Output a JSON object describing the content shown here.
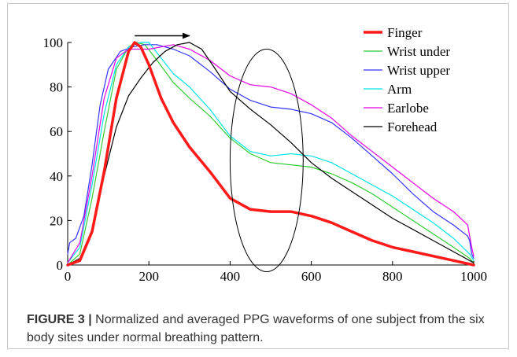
{
  "caption": {
    "label": "FIGURE 3 |",
    "text": " Normalized and averaged PPG waveforms of one subject from the six body sites under normal breathing pattern."
  },
  "chart_data": {
    "type": "line",
    "title": "",
    "xlabel": "",
    "ylabel": "",
    "xlim": [
      0,
      1000
    ],
    "ylim": [
      0,
      100
    ],
    "xticks": [
      0,
      200,
      400,
      600,
      800,
      1000
    ],
    "yticks": [
      0,
      20,
      40,
      60,
      80,
      100
    ],
    "grid": false,
    "legend_position": "top-right",
    "series": [
      {
        "name": "Finger",
        "color": "#ff1a1a",
        "width": 3.5,
        "points": [
          [
            0,
            0
          ],
          [
            30,
            2
          ],
          [
            60,
            15
          ],
          [
            90,
            42
          ],
          [
            120,
            75
          ],
          [
            150,
            96
          ],
          [
            165,
            100
          ],
          [
            180,
            98
          ],
          [
            200,
            90
          ],
          [
            230,
            75
          ],
          [
            260,
            64
          ],
          [
            300,
            53
          ],
          [
            350,
            42
          ],
          [
            400,
            30
          ],
          [
            450,
            25
          ],
          [
            500,
            24
          ],
          [
            550,
            24
          ],
          [
            600,
            22
          ],
          [
            650,
            19
          ],
          [
            700,
            15
          ],
          [
            750,
            11
          ],
          [
            800,
            8
          ],
          [
            850,
            6
          ],
          [
            900,
            4
          ],
          [
            950,
            2
          ],
          [
            1000,
            0
          ]
        ]
      },
      {
        "name": "Wrist under",
        "color": "#33cc33",
        "width": 1.2,
        "points": [
          [
            0,
            0
          ],
          [
            30,
            5
          ],
          [
            60,
            30
          ],
          [
            90,
            60
          ],
          [
            120,
            88
          ],
          [
            150,
            98
          ],
          [
            170,
            100
          ],
          [
            190,
            99
          ],
          [
            220,
            92
          ],
          [
            260,
            82
          ],
          [
            300,
            75
          ],
          [
            350,
            67
          ],
          [
            400,
            57
          ],
          [
            450,
            50
          ],
          [
            500,
            46
          ],
          [
            550,
            45
          ],
          [
            600,
            44
          ],
          [
            650,
            41
          ],
          [
            700,
            37
          ],
          [
            750,
            32
          ],
          [
            800,
            26
          ],
          [
            850,
            20
          ],
          [
            900,
            14
          ],
          [
            950,
            8
          ],
          [
            990,
            3
          ],
          [
            1000,
            1
          ]
        ]
      },
      {
        "name": "Wrist upper",
        "color": "#3333ff",
        "width": 1.2,
        "points": [
          [
            0,
            5
          ],
          [
            5,
            10
          ],
          [
            20,
            12
          ],
          [
            40,
            22
          ],
          [
            60,
            45
          ],
          [
            80,
            72
          ],
          [
            100,
            88
          ],
          [
            130,
            96
          ],
          [
            160,
            98
          ],
          [
            190,
            99
          ],
          [
            220,
            99
          ],
          [
            260,
            97
          ],
          [
            300,
            94
          ],
          [
            350,
            87
          ],
          [
            400,
            79
          ],
          [
            450,
            74
          ],
          [
            500,
            71
          ],
          [
            550,
            70
          ],
          [
            600,
            68
          ],
          [
            650,
            64
          ],
          [
            700,
            57
          ],
          [
            750,
            49
          ],
          [
            800,
            41
          ],
          [
            850,
            32
          ],
          [
            900,
            24
          ],
          [
            950,
            18
          ],
          [
            985,
            13
          ],
          [
            990,
            11
          ],
          [
            995,
            5
          ],
          [
            1000,
            3
          ]
        ]
      },
      {
        "name": "Arm",
        "color": "#00e5e5",
        "width": 1.2,
        "points": [
          [
            0,
            1
          ],
          [
            30,
            8
          ],
          [
            60,
            36
          ],
          [
            90,
            68
          ],
          [
            120,
            90
          ],
          [
            150,
            98
          ],
          [
            180,
            100
          ],
          [
            200,
            100
          ],
          [
            230,
            93
          ],
          [
            260,
            86
          ],
          [
            300,
            80
          ],
          [
            350,
            70
          ],
          [
            400,
            58
          ],
          [
            450,
            51
          ],
          [
            500,
            49
          ],
          [
            550,
            50
          ],
          [
            600,
            49
          ],
          [
            650,
            46
          ],
          [
            700,
            41
          ],
          [
            750,
            36
          ],
          [
            800,
            31
          ],
          [
            850,
            25
          ],
          [
            900,
            19
          ],
          [
            950,
            12
          ],
          [
            990,
            5
          ],
          [
            1000,
            2
          ]
        ]
      },
      {
        "name": "Earlobe",
        "color": "#e600e6",
        "width": 1.2,
        "points": [
          [
            0,
            1
          ],
          [
            30,
            10
          ],
          [
            60,
            40
          ],
          [
            90,
            75
          ],
          [
            120,
            93
          ],
          [
            150,
            97
          ],
          [
            180,
            97
          ],
          [
            200,
            97
          ],
          [
            230,
            98
          ],
          [
            260,
            99
          ],
          [
            300,
            97
          ],
          [
            350,
            92
          ],
          [
            400,
            85
          ],
          [
            450,
            81
          ],
          [
            500,
            80
          ],
          [
            550,
            77
          ],
          [
            600,
            72
          ],
          [
            650,
            66
          ],
          [
            700,
            58
          ],
          [
            750,
            51
          ],
          [
            800,
            44
          ],
          [
            850,
            37
          ],
          [
            900,
            30
          ],
          [
            950,
            24
          ],
          [
            985,
            18
          ],
          [
            995,
            8
          ],
          [
            1000,
            4
          ]
        ]
      },
      {
        "name": "Forehead",
        "color": "#000000",
        "width": 1.2,
        "points": [
          [
            0,
            0
          ],
          [
            30,
            3
          ],
          [
            60,
            16
          ],
          [
            90,
            40
          ],
          [
            120,
            62
          ],
          [
            150,
            76
          ],
          [
            180,
            84
          ],
          [
            210,
            91
          ],
          [
            240,
            96
          ],
          [
            270,
            99
          ],
          [
            300,
            100
          ],
          [
            330,
            97
          ],
          [
            360,
            89
          ],
          [
            400,
            78
          ],
          [
            450,
            70
          ],
          [
            500,
            63
          ],
          [
            550,
            55
          ],
          [
            600,
            46
          ],
          [
            650,
            39
          ],
          [
            700,
            33
          ],
          [
            750,
            27
          ],
          [
            800,
            21
          ],
          [
            850,
            16
          ],
          [
            900,
            11
          ],
          [
            950,
            6
          ],
          [
            1000,
            1
          ]
        ]
      }
    ],
    "annotations": [
      {
        "kind": "arrow",
        "from": [
          165,
          103
        ],
        "to": [
          300,
          103
        ],
        "direction": "right"
      },
      {
        "kind": "ellipse",
        "center": [
          490,
          47
        ],
        "rx": 90,
        "ry": 50
      }
    ]
  }
}
